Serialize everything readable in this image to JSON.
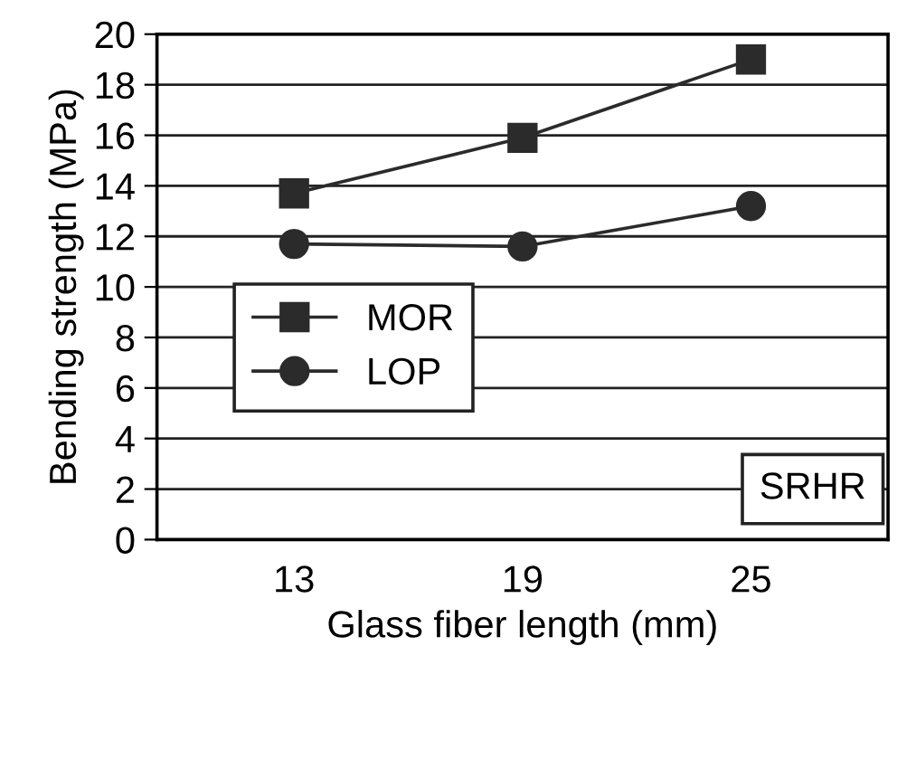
{
  "chart_data": {
    "type": "line",
    "xlabel": "Glass fiber length (mm)",
    "ylabel": "Bending strength (MPa)",
    "categories": [
      "13",
      "19",
      "25"
    ],
    "series": [
      {
        "name": "MOR",
        "color": "#2b2b2b",
        "values": [
          13.7,
          15.9,
          19.0
        ],
        "marker": "square"
      },
      {
        "name": "LOP",
        "color": "#2b2b2b",
        "values": [
          11.7,
          11.6,
          13.2
        ],
        "marker": "circle"
      }
    ],
    "ylim": [
      0,
      20
    ],
    "yticks": [
      0,
      2,
      4,
      6,
      8,
      10,
      12,
      14,
      16,
      18,
      20
    ],
    "grid": "y",
    "legend": "left",
    "line_style": "solid",
    "annotations": [
      "SRHR"
    ]
  }
}
